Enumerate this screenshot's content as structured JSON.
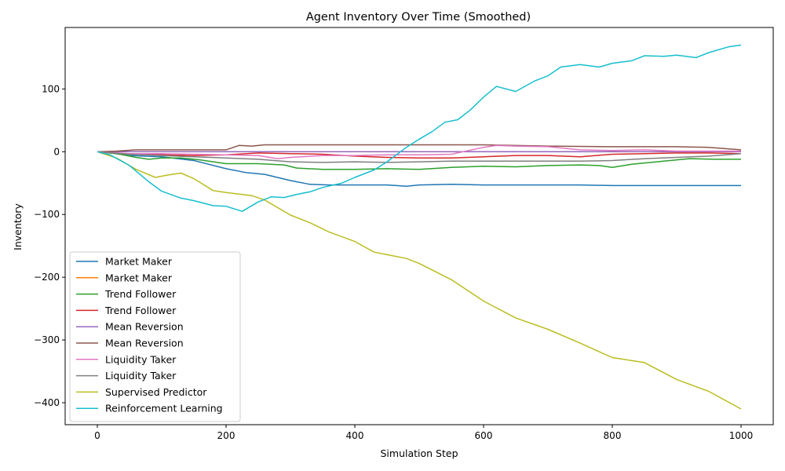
{
  "chart_data": {
    "type": "line",
    "title": "Agent Inventory Over Time (Smoothed)",
    "xlabel": "Simulation Step",
    "ylabel": "Inventory",
    "xlim": [
      -50,
      1050
    ],
    "ylim": [
      -435,
      198
    ],
    "xticks": [
      0,
      200,
      400,
      600,
      800,
      1000
    ],
    "yticks": [
      100,
      0,
      -100,
      -200,
      -300,
      -400
    ],
    "ytick_labels": [
      "100",
      "0",
      "−100",
      "−200",
      "−300",
      "−400"
    ],
    "grid": false,
    "legend_position": "lower-left",
    "series": [
      {
        "name": "Market Maker",
        "color": "#1f77b4",
        "x": [
          0,
          20,
          50,
          100,
          150,
          200,
          230,
          260,
          300,
          330,
          360,
          400,
          450,
          480,
          500,
          550,
          600,
          650,
          700,
          750,
          800,
          850,
          900,
          950,
          1000
        ],
        "y": [
          0,
          -2,
          -6,
          -8,
          -14,
          -27,
          -33,
          -36,
          -46,
          -52,
          -53,
          -53,
          -53,
          -55,
          -53,
          -52,
          -53,
          -53,
          -53,
          -53,
          -54,
          -54,
          -54,
          -54,
          -54
        ]
      },
      {
        "name": "Market Maker",
        "color": "#ff7f0e",
        "x": [
          0,
          50,
          100,
          200,
          400,
          600,
          800,
          1000
        ],
        "y": [
          0,
          0,
          0,
          0,
          0,
          0,
          0,
          0
        ]
      },
      {
        "name": "Trend Follower",
        "color": "#2ca02c",
        "x": [
          0,
          30,
          60,
          80,
          100,
          130,
          160,
          200,
          250,
          290,
          310,
          350,
          380,
          400,
          450,
          500,
          550,
          600,
          650,
          700,
          750,
          780,
          800,
          830,
          880,
          920,
          960,
          1000
        ],
        "y": [
          0,
          -3,
          -9,
          -12,
          -10,
          -10,
          -13,
          -19,
          -19,
          -21,
          -26,
          -28,
          -28,
          -28,
          -27,
          -28,
          -25,
          -23,
          -24,
          -22,
          -21,
          -22,
          -25,
          -20,
          -15,
          -11,
          -12,
          -12
        ]
      },
      {
        "name": "Trend Follower",
        "color": "#d62728",
        "x": [
          0,
          50,
          100,
          150,
          200,
          250,
          300,
          350,
          400,
          450,
          500,
          550,
          600,
          650,
          700,
          750,
          800,
          850,
          900,
          950,
          1000
        ],
        "y": [
          0,
          -4,
          -5,
          -6,
          -5,
          -2,
          -3,
          -4,
          -7,
          -9,
          -10,
          -10,
          -8,
          -6,
          -6,
          -8,
          -4,
          -3,
          -2,
          -2,
          -3
        ]
      },
      {
        "name": "Mean Reversion",
        "color": "#9467bd",
        "x": [
          0,
          50,
          100,
          200,
          400,
          600,
          800,
          1000
        ],
        "y": [
          0,
          0,
          0,
          0,
          0,
          0,
          0,
          0
        ]
      },
      {
        "name": "Mean Reversion",
        "color": "#8c564b",
        "x": [
          0,
          30,
          60,
          100,
          200,
          220,
          240,
          260,
          300,
          400,
          500,
          600,
          700,
          800,
          900,
          950,
          1000
        ],
        "y": [
          0,
          1,
          3,
          3,
          3,
          10,
          9,
          11,
          11,
          11,
          11,
          11,
          9,
          8,
          8,
          7,
          3
        ]
      },
      {
        "name": "Liquidity Taker",
        "color": "#e377c2",
        "x": [
          0,
          50,
          100,
          150,
          200,
          250,
          280,
          300,
          350,
          400,
          450,
          500,
          550,
          600,
          620,
          650,
          700,
          750,
          800,
          850,
          900,
          950,
          1000
        ],
        "y": [
          0,
          -3,
          -3,
          -4,
          -5,
          -6,
          -11,
          -9,
          -6,
          -6,
          -5,
          -5,
          -4,
          7,
          10,
          9,
          8,
          3,
          2,
          3,
          1,
          1,
          1
        ]
      },
      {
        "name": "Liquidity Taker",
        "color": "#7f7f7f",
        "x": [
          0,
          50,
          100,
          150,
          200,
          250,
          300,
          350,
          400,
          450,
          500,
          550,
          600,
          650,
          700,
          750,
          800,
          850,
          900,
          950,
          1000
        ],
        "y": [
          0,
          -4,
          -6,
          -8,
          -10,
          -12,
          -16,
          -17,
          -16,
          -17,
          -16,
          -15,
          -15,
          -15,
          -15,
          -15,
          -14,
          -11,
          -9,
          -7,
          -3
        ]
      },
      {
        "name": "Supervised Predictor",
        "color": "#bcbd22",
        "x": [
          0,
          30,
          60,
          90,
          110,
          130,
          150,
          180,
          200,
          240,
          260,
          300,
          330,
          360,
          400,
          430,
          450,
          480,
          500,
          550,
          600,
          650,
          700,
          750,
          800,
          850,
          900,
          950,
          1000
        ],
        "y": [
          0,
          -10,
          -28,
          -41,
          -37,
          -34,
          -43,
          -62,
          -65,
          -70,
          -77,
          -101,
          -113,
          -128,
          -143,
          -160,
          -164,
          -170,
          -178,
          -204,
          -238,
          -265,
          -283,
          -305,
          -328,
          -336,
          -363,
          -382,
          -410
        ]
      },
      {
        "name": "Reinforcement Learning",
        "color": "#17becf",
        "x": [
          0,
          20,
          50,
          80,
          100,
          130,
          150,
          180,
          200,
          225,
          250,
          270,
          290,
          310,
          330,
          350,
          380,
          400,
          430,
          450,
          480,
          500,
          520,
          540,
          560,
          580,
          600,
          620,
          650,
          680,
          700,
          720,
          750,
          780,
          800,
          830,
          850,
          880,
          900,
          930,
          950,
          980,
          1000
        ],
        "y": [
          0,
          -5,
          -22,
          -48,
          -63,
          -74,
          -78,
          -86,
          -87,
          -95,
          -80,
          -72,
          -73,
          -68,
          -64,
          -57,
          -50,
          -41,
          -29,
          -16,
          7,
          20,
          32,
          47,
          51,
          67,
          87,
          104,
          96,
          113,
          121,
          135,
          139,
          135,
          141,
          145,
          153,
          152,
          154,
          150,
          158,
          167,
          170
        ]
      }
    ]
  }
}
